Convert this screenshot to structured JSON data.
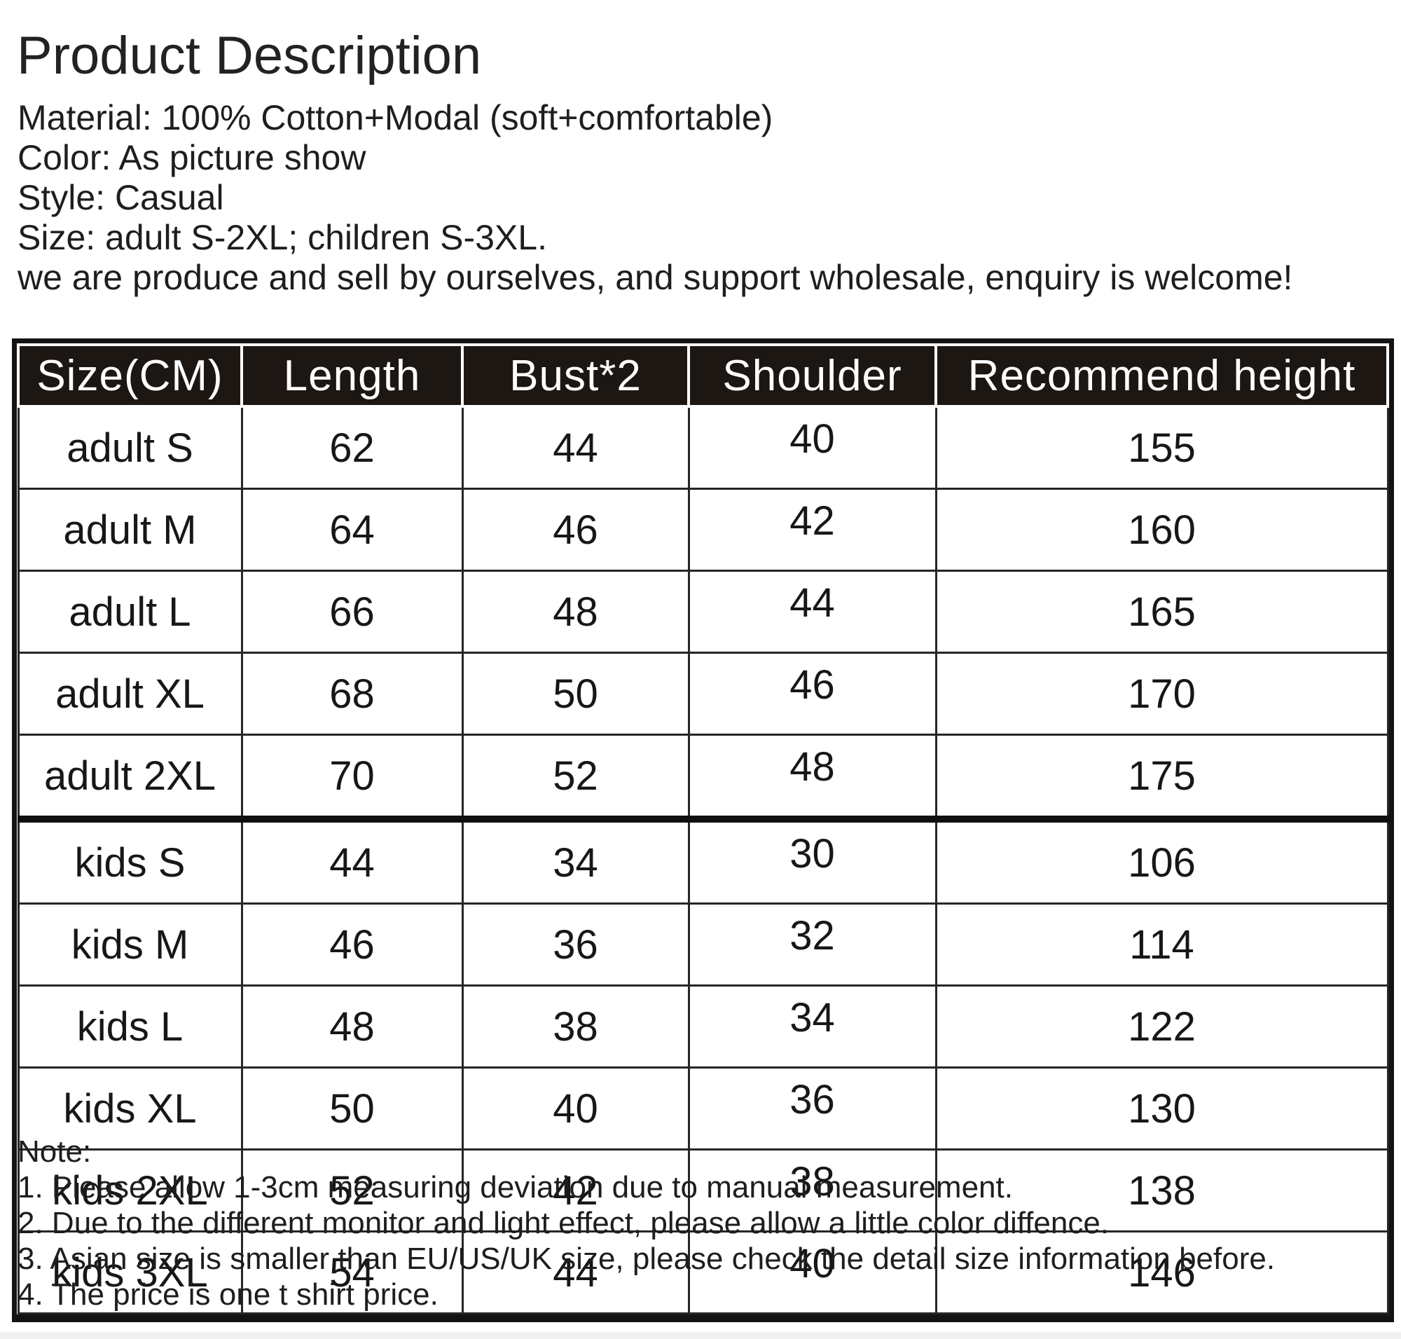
{
  "page": {
    "title": "Product Description",
    "description_lines": [
      "Material: 100% Cotton+Modal (soft+comfortable)",
      "Color: As picture show",
      "Style: Casual",
      "Size: adult S-2XL; children S-3XL.",
      "we are produce and sell by ourselves, and support wholesale, enquiry is welcome!"
    ]
  },
  "size_table": {
    "headers": [
      "Size(CM)",
      "Length",
      "Bust*2",
      "Shoulder",
      "Recommend height"
    ],
    "rows": [
      {
        "group": "adult",
        "size": "adult S",
        "length": "62",
        "bust": "44",
        "shoulder": "40",
        "height": "155"
      },
      {
        "group": "adult",
        "size": "adult M",
        "length": "64",
        "bust": "46",
        "shoulder": "42",
        "height": "160"
      },
      {
        "group": "adult",
        "size": "adult L",
        "length": "66",
        "bust": "48",
        "shoulder": "44",
        "height": "165"
      },
      {
        "group": "adult",
        "size": "adult XL",
        "length": "68",
        "bust": "50",
        "shoulder": "46",
        "height": "170"
      },
      {
        "group": "adult",
        "size": "adult 2XL",
        "length": "70",
        "bust": "52",
        "shoulder": "48",
        "height": "175"
      },
      {
        "group": "kids",
        "size": "kids S",
        "length": "44",
        "bust": "34",
        "shoulder": "30",
        "height": "106"
      },
      {
        "group": "kids",
        "size": "kids M",
        "length": "46",
        "bust": "36",
        "shoulder": "32",
        "height": "114"
      },
      {
        "group": "kids",
        "size": "kids L",
        "length": "48",
        "bust": "38",
        "shoulder": "34",
        "height": "122"
      },
      {
        "group": "kids",
        "size": "kids XL",
        "length": "50",
        "bust": "40",
        "shoulder": "36",
        "height": "130"
      },
      {
        "group": "kids",
        "size": "kids 2XL",
        "length": "52",
        "bust": "42",
        "shoulder": "38",
        "height": "138"
      },
      {
        "group": "kids",
        "size": "kids 3XL",
        "length": "54",
        "bust": "44",
        "shoulder": "40",
        "height": "146"
      }
    ]
  },
  "notes": {
    "heading": "Note:",
    "items": [
      "1. Please allow 1-3cm measuring deviation due to manual measurement.",
      "2. Due to the different monitor and light effect, please allow a little color diffence.",
      "3. Asian size is smaller than EU/US/UK size, please check the detail size information before.",
      "4. The price is one t shirt price."
    ]
  },
  "colors": {
    "header_background": "#1d1713",
    "header_text": "#ffffff",
    "table_frame_border": "#131313",
    "inner_grid_border": "#262626",
    "body_text": "#1e1e1e",
    "page_background": "#ffffff"
  }
}
